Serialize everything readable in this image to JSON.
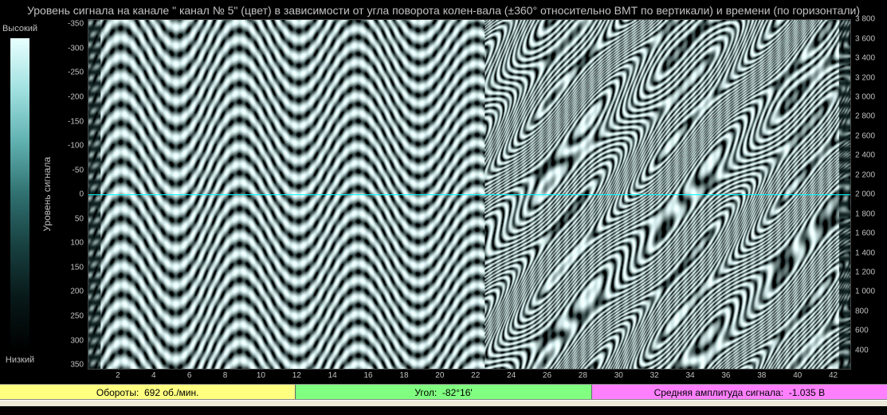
{
  "title": "Уровень сигнала на канале \" канал № 5\" (цвет) в зависимости от угла поворота колен-вала (±360° относительно ВМТ по вертикали) и времени (по горизонтали)",
  "colorbar": {
    "high_label": "Высокий",
    "low_label": "Низкий",
    "axis_label": "Уровень сигнала",
    "gradient_stops": [
      "#e8ffff",
      "#a0e0e0",
      "#60b0b0",
      "#307070",
      "#184040",
      "#081818",
      "#000000"
    ]
  },
  "heatmap": {
    "type": "heatmap",
    "y_left": {
      "min": -360,
      "max": 360,
      "ticks": [
        -350,
        -300,
        -250,
        -200,
        -150,
        -100,
        -50,
        0,
        50,
        100,
        150,
        200,
        250,
        300,
        350
      ]
    },
    "y_right": {
      "min": 200,
      "max": 3800,
      "ticks": [
        3800,
        3600,
        3400,
        3200,
        3000,
        2800,
        2600,
        2400,
        2200,
        2000,
        1800,
        1600,
        1400,
        1200,
        1000,
        800,
        600,
        400
      ]
    },
    "x": {
      "min": 0,
      "max": 43,
      "ticks": [
        2,
        4,
        6,
        8,
        10,
        12,
        14,
        16,
        18,
        20,
        22,
        24,
        26,
        28,
        30,
        32,
        34,
        36,
        38,
        40,
        42
      ]
    },
    "zero_line_color": "#00ffff",
    "colors": {
      "low": "#081818",
      "mid": "#409090",
      "high": "#e8ffff"
    },
    "background": "#000000"
  },
  "status": {
    "rpm": {
      "label": "Обороты:",
      "value": "692 об./мин.",
      "bg": "#ffff80"
    },
    "angle": {
      "label": "Угол:",
      "value": "-82°16'",
      "bg": "#80ff80"
    },
    "amplitude": {
      "label": "Средняя амплитуда сигнала:",
      "value": "-1.035 В",
      "bg": "#ff80ff"
    }
  },
  "fonts": {
    "title": 14,
    "tick": 10,
    "status": 12
  }
}
